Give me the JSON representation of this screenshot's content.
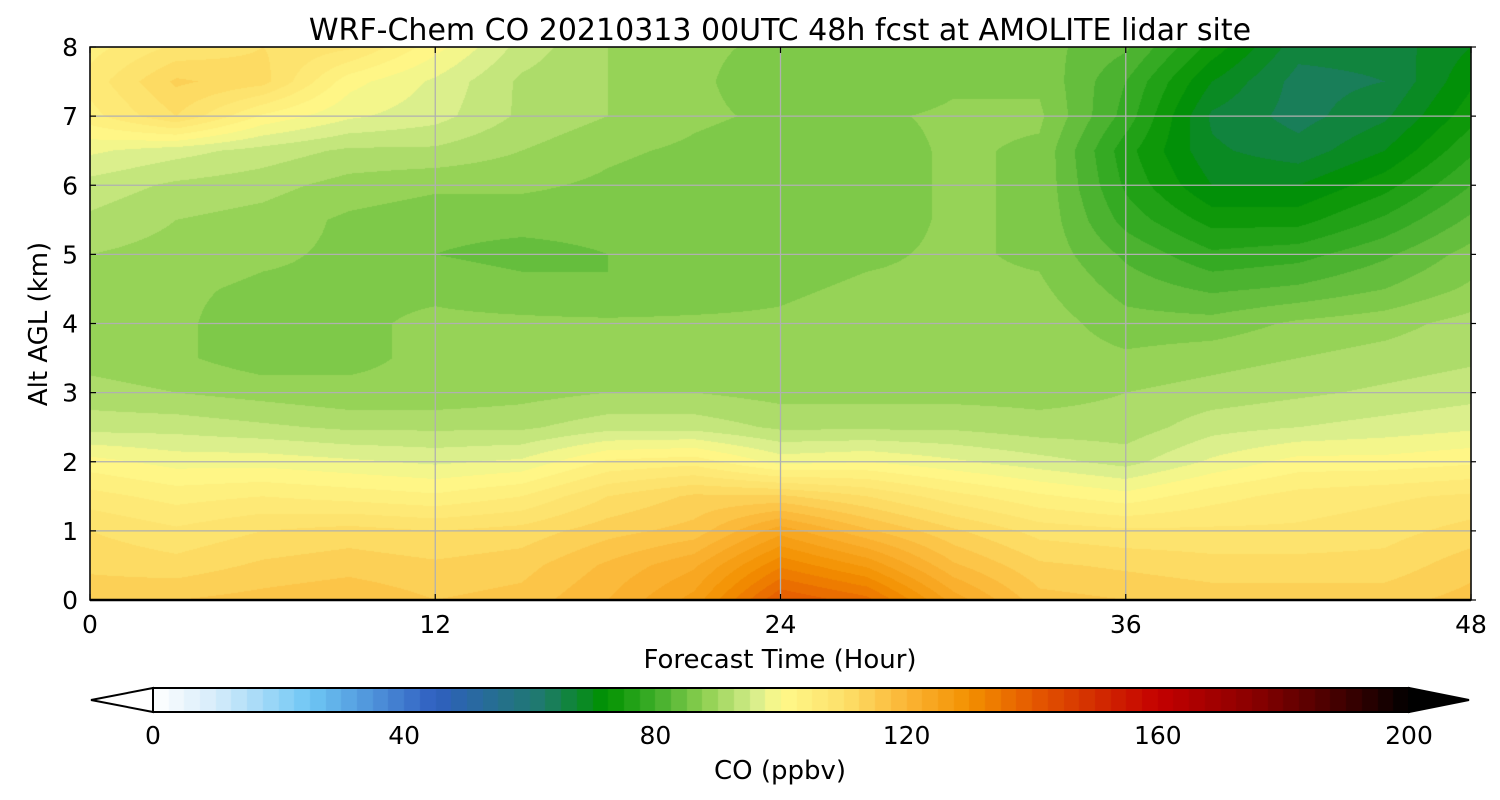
{
  "chart_data": {
    "type": "heatmap",
    "title": "WRF-Chem CO  20210313 00UTC 48h fcst at AMOLITE lidar site",
    "xlabel": "Forecast Time (Hour)",
    "ylabel": "Alt AGL (km)",
    "xlim": [
      0,
      48
    ],
    "ylim": [
      0,
      8
    ],
    "x_ticks": [
      0,
      12,
      24,
      36,
      48
    ],
    "y_ticks": [
      0,
      1,
      2,
      3,
      4,
      5,
      6,
      7,
      8
    ],
    "grid": true,
    "x": [
      0,
      3,
      6,
      9,
      12,
      15,
      18,
      21,
      24,
      27,
      30,
      33,
      36,
      39,
      42,
      45,
      48
    ],
    "y": [
      0,
      0.5,
      1,
      1.5,
      2,
      2.5,
      3,
      3.5,
      4,
      4.5,
      5,
      5.5,
      6,
      6.5,
      7,
      7.5,
      8
    ],
    "z_rows_by_altitude": [
      [
        114,
        115,
        116,
        117,
        115,
        116,
        120,
        126,
        140,
        136,
        124,
        116,
        115,
        114,
        114,
        114,
        116
      ],
      [
        112,
        111,
        113,
        114,
        113,
        114,
        118,
        122,
        132,
        127,
        118,
        113,
        112,
        111,
        111,
        111,
        114
      ],
      [
        110,
        108,
        110,
        111,
        110,
        111,
        114,
        116,
        124,
        118,
        113,
        109,
        108,
        108,
        108,
        109,
        111
      ],
      [
        106,
        104,
        105,
        104,
        103,
        105,
        110,
        113,
        113,
        110,
        106,
        103,
        101,
        104,
        106,
        107,
        108
      ],
      [
        101,
        99,
        99,
        98,
        97,
        98,
        103,
        104,
        99,
        100,
        98,
        96,
        94,
        98,
        101,
        101,
        102
      ],
      [
        94,
        94,
        93,
        92,
        92,
        92,
        94,
        94,
        92,
        92,
        92,
        91,
        91,
        94,
        95,
        96,
        97
      ],
      [
        91,
        90,
        89,
        88,
        88,
        89,
        90,
        90,
        89,
        89,
        89,
        89,
        90,
        91,
        92,
        93,
        94
      ],
      [
        89,
        88,
        86,
        87,
        88,
        88,
        89,
        89,
        89,
        89,
        89,
        89,
        88,
        89,
        90,
        91,
        92
      ],
      [
        89,
        88,
        86,
        87,
        88,
        88,
        88,
        88,
        88,
        89,
        89,
        89,
        86,
        86,
        88,
        89,
        91
      ],
      [
        89,
        88,
        87,
        87,
        87,
        86,
        85,
        86,
        87,
        88,
        88,
        88,
        84,
        82,
        83,
        85,
        88
      ],
      [
        90,
        89,
        88,
        87,
        85,
        84,
        85,
        86,
        86,
        87,
        88,
        87,
        82,
        78,
        79,
        82,
        86
      ],
      [
        92,
        90,
        89,
        87,
        86,
        86,
        86,
        86,
        85,
        86,
        88,
        87,
        79,
        74,
        74,
        78,
        83
      ],
      [
        94,
        92,
        91,
        89,
        88,
        88,
        87,
        86,
        85,
        86,
        88,
        87,
        77,
        70,
        70,
        74,
        80
      ],
      [
        98,
        96,
        94,
        92,
        92,
        90,
        88,
        87,
        86,
        86,
        88,
        87,
        76,
        68,
        66,
        70,
        77
      ],
      [
        104,
        110,
        102,
        98,
        96,
        92,
        90,
        88,
        87,
        87,
        88,
        88,
        79,
        67,
        64,
        67,
        74
      ],
      [
        106,
        113,
        111,
        101,
        97,
        92,
        90,
        88,
        86,
        85,
        87,
        87,
        80,
        70,
        64,
        65,
        72
      ],
      [
        104,
        108,
        110,
        108,
        101,
        94,
        90,
        88,
        87,
        85,
        86,
        86,
        83,
        74,
        66,
        66,
        70
      ]
    ],
    "colorbar": {
      "label": "CO  (ppbv)",
      "ticks": [
        0,
        40,
        80,
        120,
        160,
        200
      ],
      "min": 0,
      "max": 200,
      "extend": "both",
      "orientation": "horizontal",
      "placement": "bottom",
      "stops": [
        {
          "v": 0,
          "c": "#ffffff"
        },
        {
          "v": 10,
          "c": "#d6ecfa"
        },
        {
          "v": 25,
          "c": "#6ec6f4"
        },
        {
          "v": 45,
          "c": "#2f5fc0"
        },
        {
          "v": 62,
          "c": "#1e7a6c"
        },
        {
          "v": 72,
          "c": "#009200"
        },
        {
          "v": 80,
          "c": "#3fae2a"
        },
        {
          "v": 88,
          "c": "#8fd052"
        },
        {
          "v": 96,
          "c": "#d9ee8c"
        },
        {
          "v": 100,
          "c": "#fff98a"
        },
        {
          "v": 110,
          "c": "#fde06a"
        },
        {
          "v": 120,
          "c": "#fbb534"
        },
        {
          "v": 130,
          "c": "#f39000"
        },
        {
          "v": 140,
          "c": "#e55a00"
        },
        {
          "v": 150,
          "c": "#d32d00"
        },
        {
          "v": 160,
          "c": "#c40000"
        },
        {
          "v": 175,
          "c": "#8a0000"
        },
        {
          "v": 190,
          "c": "#3d0000"
        },
        {
          "v": 200,
          "c": "#000000"
        }
      ]
    }
  }
}
